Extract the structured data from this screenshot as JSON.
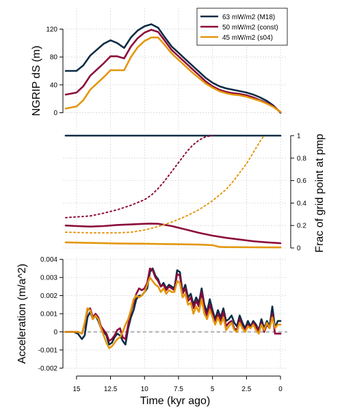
{
  "colors": {
    "m18": "#0b2c45",
    "const": "#8b0a3a",
    "s04": "#e3960b",
    "grid": "#d6d6d6",
    "zero_line": "#bbbbbb",
    "axis": "#000000"
  },
  "legend": {
    "placement": "top-right",
    "entries": [
      "63 mW/m2 (M18)",
      "50 mW/m2 (const)",
      "45 mW/m2 (s04)"
    ]
  },
  "xaxis": {
    "label": "Time (kyr ago)",
    "range": [
      16,
      -0.5
    ],
    "reversed": true,
    "ticks": [
      15,
      12.5,
      10,
      7.5,
      5,
      2.5,
      0
    ],
    "tick_labels": [
      "15",
      "12.5",
      "10",
      "7.5",
      "5",
      "2.5",
      "0"
    ]
  },
  "chart_data": [
    {
      "type": "line",
      "panel": "top",
      "ylabel": "NGRIP dS (m)",
      "ylim": [
        -25,
        150
      ],
      "yticks": [
        0,
        40,
        80,
        120
      ],
      "ytick_labels": [
        "0",
        "40",
        "80",
        "120"
      ],
      "grid": true,
      "series": [
        {
          "name": "63 mW/m2 (M18)",
          "color_key": "m18",
          "style": "solid",
          "x": [
            15.8,
            15,
            14.5,
            14,
            13,
            12.5,
            12,
            11.5,
            11,
            10.5,
            10,
            9.5,
            9,
            8.5,
            8,
            7.5,
            7,
            6.5,
            6,
            5.5,
            5,
            4.5,
            4,
            3.5,
            3,
            2.5,
            2,
            1.5,
            1,
            0.5,
            0
          ],
          "y": [
            60,
            60,
            68,
            82,
            99,
            104,
            100,
            93,
            108,
            118,
            124,
            127,
            122,
            108,
            95,
            86,
            77,
            68,
            59,
            50,
            43,
            38,
            35,
            33,
            31,
            29,
            26,
            22,
            17,
            10,
            0
          ]
        },
        {
          "name": "50 mW/m2 (const)",
          "color_key": "const",
          "style": "solid",
          "x": [
            15.8,
            15,
            14.5,
            14,
            13,
            12.5,
            12,
            11.5,
            11,
            10.5,
            10,
            9.5,
            9,
            8.5,
            8,
            7.5,
            7,
            6.5,
            6,
            5.5,
            5,
            4.5,
            4,
            3.5,
            3,
            2.5,
            2,
            1.5,
            1,
            0.5,
            0
          ],
          "y": [
            26,
            29,
            38,
            53,
            71,
            81,
            81,
            78,
            95,
            107,
            115,
            119,
            116,
            103,
            90,
            81,
            72,
            63,
            54,
            45,
            38,
            33,
            30,
            28,
            27,
            25,
            22,
            18,
            14,
            9,
            1
          ]
        },
        {
          "name": "45 mW/m2 (s04)",
          "color_key": "s04",
          "style": "solid",
          "x": [
            15.8,
            15,
            14.5,
            14,
            13,
            12.5,
            12,
            11.5,
            11,
            10.5,
            10,
            9.5,
            9,
            8.5,
            8,
            7.5,
            7,
            6.5,
            6,
            5.5,
            5,
            4.5,
            4,
            3.5,
            3,
            2.5,
            2,
            1.5,
            1,
            0.5,
            0
          ],
          "y": [
            6,
            9,
            18,
            33,
            51,
            61,
            61,
            61,
            80,
            94,
            103,
            108,
            108,
            97,
            85,
            76,
            67,
            58,
            50,
            42,
            36,
            31,
            28,
            26,
            25,
            23,
            20,
            17,
            13,
            8,
            1
          ]
        }
      ]
    },
    {
      "type": "line",
      "panel": "middle",
      "ylabel": "Frac of grid point at pmp",
      "ylabel_side": "right",
      "ylim": [
        0,
        1
      ],
      "yticks": [
        0,
        0.2,
        0.4,
        0.6,
        0.8,
        1
      ],
      "ytick_labels": [
        "0",
        "0.2",
        "0.4",
        "0.6",
        "0.8",
        "1"
      ],
      "grid": true,
      "series": [
        {
          "name": "63 mW/m2 (M18)",
          "color_key": "m18",
          "style": "solid",
          "x": [
            15.8,
            10,
            5,
            0
          ],
          "y": [
            1,
            1,
            1,
            1
          ]
        },
        {
          "name": "50 mW/m2 (const)",
          "color_key": "const",
          "style": "solid",
          "x": [
            15.8,
            15,
            14,
            13,
            12,
            11,
            10,
            9.5,
            9,
            8,
            7,
            6,
            5,
            4,
            3,
            2,
            1,
            0
          ],
          "y": [
            0.2,
            0.195,
            0.19,
            0.195,
            0.205,
            0.21,
            0.215,
            0.217,
            0.215,
            0.195,
            0.165,
            0.135,
            0.11,
            0.09,
            0.075,
            0.06,
            0.05,
            0.042
          ]
        },
        {
          "name": "50 mW/m2 (const) dotted",
          "color_key": "const",
          "style": "dotted",
          "x": [
            15.8,
            14,
            13,
            12,
            11,
            10,
            9.5,
            9,
            8.5,
            8,
            7.5,
            7,
            6.5,
            6,
            5.5,
            5
          ],
          "y": [
            0.27,
            0.285,
            0.31,
            0.34,
            0.38,
            0.43,
            0.47,
            0.53,
            0.6,
            0.68,
            0.76,
            0.84,
            0.91,
            0.96,
            0.99,
            1.0
          ]
        },
        {
          "name": "45 mW/m2 (s04)",
          "color_key": "s04",
          "style": "solid",
          "x": [
            15.8,
            14,
            12,
            10,
            8,
            6,
            5,
            4.5,
            4,
            2,
            0
          ],
          "y": [
            0.05,
            0.045,
            0.04,
            0.038,
            0.034,
            0.03,
            0.025,
            0.01,
            0.008,
            0.006,
            0.005
          ]
        },
        {
          "name": "45 mW/m2 (s04) dotted",
          "color_key": "s04",
          "style": "dotted",
          "x": [
            15.8,
            14,
            12,
            11,
            10,
            9,
            8,
            7,
            6,
            5,
            4,
            3.5,
            3,
            2.5,
            2,
            1.5,
            1.2
          ],
          "y": [
            0.14,
            0.135,
            0.135,
            0.14,
            0.16,
            0.19,
            0.23,
            0.28,
            0.34,
            0.42,
            0.52,
            0.59,
            0.67,
            0.75,
            0.85,
            0.95,
            1.0
          ]
        }
      ]
    },
    {
      "type": "line",
      "panel": "bottom",
      "ylabel": "Acceleration (m/a^2)",
      "ylim": [
        -0.0021,
        0.0041
      ],
      "yticks": [
        -0.002,
        -0.001,
        0,
        0.001,
        0.002,
        0.003,
        0.004
      ],
      "ytick_labels": [
        "-0.002",
        "-0.001",
        "0",
        "0.001",
        "0.002",
        "0.003",
        "0.004"
      ],
      "grid": true,
      "zero_line": true,
      "series": [
        {
          "name": "63 mW/m2 (M18)",
          "color_key": "m18",
          "style": "solid",
          "x": [
            15.8,
            15.2,
            14.9,
            14.6,
            14.4,
            14.2,
            14.0,
            13.8,
            13.6,
            13.4,
            13.2,
            13.0,
            12.8,
            12.6,
            12.4,
            12.2,
            12.0,
            11.8,
            11.6,
            11.4,
            11.2,
            11.0,
            10.8,
            10.6,
            10.4,
            10.2,
            10.0,
            9.8,
            9.6,
            9.4,
            9.2,
            9.0,
            8.8,
            8.6,
            8.4,
            8.2,
            8.0,
            7.8,
            7.6,
            7.4,
            7.2,
            7.0,
            6.8,
            6.6,
            6.4,
            6.2,
            6.0,
            5.8,
            5.6,
            5.4,
            5.2,
            5.0,
            4.8,
            4.6,
            4.4,
            4.2,
            4.0,
            3.8,
            3.6,
            3.4,
            3.2,
            3.0,
            2.8,
            2.6,
            2.4,
            2.2,
            2.0,
            1.8,
            1.6,
            1.4,
            1.2,
            1.0,
            0.8,
            0.6,
            0.4,
            0.2,
            0
          ],
          "y": [
            0,
            0,
            -0.0001,
            -0.0004,
            -0.0002,
            0.0008,
            0.0011,
            0.0007,
            0.0009,
            0.0006,
            0.0002,
            0,
            -0.0002,
            -0.0007,
            -0.0006,
            -0.0003,
            -0.0001,
            -0.0002,
            -0.0005,
            -0.0007,
            0.0002,
            0.0008,
            0.0012,
            0.0018,
            0.002,
            0.002,
            0.0022,
            0.0024,
            0.0033,
            0.0035,
            0.0031,
            0.0029,
            0.0025,
            0.0027,
            0.0024,
            0.0026,
            0.0025,
            0.0024,
            0.0034,
            0.0033,
            0.0022,
            0.0026,
            0.0019,
            0.0021,
            0.0015,
            0.0019,
            0.0016,
            0.0024,
            0.0015,
            0.0011,
            0.0018,
            0.0012,
            0.0007,
            0.0012,
            0.0008,
            0.0013,
            0.0006,
            0.0007,
            0.0009,
            0.0005,
            0.0003,
            0.0009,
            0.0005,
            0.0002,
            0.0006,
            0.0003,
            0.0006,
            0.0004,
            0.0001,
            0.0007,
            0.0002,
            0.0006,
            0.0003,
            0.0014,
            0.0002,
            0.0006,
            0.0006
          ]
        },
        {
          "name": "50 mW/m2 (const)",
          "color_key": "const",
          "style": "solid",
          "x": [
            15.8,
            15.2,
            14.9,
            14.6,
            14.4,
            14.2,
            14.0,
            13.8,
            13.6,
            13.4,
            13.2,
            13.0,
            12.8,
            12.6,
            12.4,
            12.2,
            12.0,
            11.8,
            11.6,
            11.4,
            11.2,
            11.0,
            10.8,
            10.6,
            10.4,
            10.2,
            10.0,
            9.8,
            9.6,
            9.4,
            9.2,
            9.0,
            8.8,
            8.6,
            8.4,
            8.2,
            8.0,
            7.8,
            7.6,
            7.4,
            7.2,
            7.0,
            6.8,
            6.6,
            6.4,
            6.2,
            6.0,
            5.8,
            5.6,
            5.4,
            5.2,
            5.0,
            4.8,
            4.6,
            4.4,
            4.2,
            4.0,
            3.8,
            3.6,
            3.4,
            3.2,
            3.0,
            2.8,
            2.6,
            2.4,
            2.2,
            2.0,
            1.8,
            1.6,
            1.4,
            1.2,
            1.0,
            0.8,
            0.6,
            0.4,
            0.2,
            0
          ],
          "y": [
            0,
            0,
            0,
            -0.0001,
            0.0004,
            0.0012,
            0.0013,
            0.0008,
            0.001,
            0.0008,
            0.0003,
            0.0001,
            -0.0001,
            -0.0005,
            -0.0004,
            -0.0002,
            0.0001,
            0.0002,
            -0.0003,
            -0.0004,
            0.0004,
            0.0011,
            0.0016,
            0.0021,
            0.0024,
            0.0023,
            0.0024,
            0.0027,
            0.0035,
            0.0034,
            0.003,
            0.0028,
            0.0025,
            0.0026,
            0.0023,
            0.0025,
            0.0024,
            0.0023,
            0.0032,
            0.0031,
            0.0021,
            0.0024,
            0.0017,
            0.0019,
            0.0013,
            0.0017,
            0.0014,
            0.0022,
            0.0013,
            0.0009,
            0.0015,
            0.001,
            0.0005,
            0.001,
            0.0006,
            0.0011,
            0.0003,
            0.0005,
            0.0006,
            0.0002,
            0.0001,
            0.0007,
            0.0003,
            0.0001,
            0.0004,
            0.0002,
            0.0005,
            0.0003,
            0.0,
            0.0005,
            0.0,
            0.0004,
            0.0002,
            0.001,
            -0.0001,
            -0.0001,
            -0.0001
          ]
        },
        {
          "name": "45 mW/m2 (s04)",
          "color_key": "s04",
          "style": "solid",
          "x": [
            15.8,
            15.2,
            14.9,
            14.6,
            14.4,
            14.2,
            14.0,
            13.8,
            13.6,
            13.4,
            13.2,
            13.0,
            12.8,
            12.6,
            12.4,
            12.2,
            12.0,
            11.8,
            11.6,
            11.4,
            11.2,
            11.0,
            10.8,
            10.6,
            10.4,
            10.2,
            10.0,
            9.8,
            9.6,
            9.4,
            9.2,
            9.0,
            8.8,
            8.6,
            8.4,
            8.2,
            8.0,
            7.8,
            7.6,
            7.4,
            7.2,
            7.0,
            6.8,
            6.6,
            6.4,
            6.2,
            6.0,
            5.8,
            5.6,
            5.4,
            5.2,
            5.0,
            4.8,
            4.6,
            4.4,
            4.2,
            4.0,
            3.8,
            3.6,
            3.4,
            3.2,
            3.0,
            2.8,
            2.6,
            2.4,
            2.2,
            2.0,
            1.8,
            1.6,
            1.4,
            1.2,
            1.0,
            0.8,
            0.6,
            0.4,
            0.2,
            0
          ],
          "y": [
            0,
            0,
            0,
            -0.0001,
            0.0005,
            0.0013,
            0.0012,
            0.0007,
            0.0009,
            0.0007,
            0.0002,
            -0.0002,
            -0.0006,
            -0.0009,
            -0.0008,
            -0.0006,
            -0.0004,
            -0.0003,
            0.0,
            0.0004,
            0.0007,
            0.0012,
            0.0018,
            0.002,
            0.0019,
            0.002,
            0.0022,
            0.0026,
            0.003,
            0.0028,
            0.0026,
            0.0025,
            0.0022,
            0.0024,
            0.0021,
            0.0023,
            0.0022,
            0.0022,
            0.0028,
            0.0027,
            0.0019,
            0.0021,
            0.0015,
            0.0016,
            0.001,
            0.0014,
            0.0011,
            0.0018,
            0.001,
            0.0007,
            0.0012,
            0.0008,
            0.0004,
            0.0008,
            0.0004,
            0.0008,
            0.0001,
            0.0003,
            0.0005,
            0.0001,
            0.0,
            0.0005,
            0.0002,
            0.0,
            0.0003,
            0.0002,
            0.0004,
            0.0001,
            -0.0001,
            0.0004,
            0.0001,
            0.0005,
            0.0002,
            0.0008,
            0.0002,
            0.0004,
            0.0004
          ]
        }
      ]
    }
  ]
}
